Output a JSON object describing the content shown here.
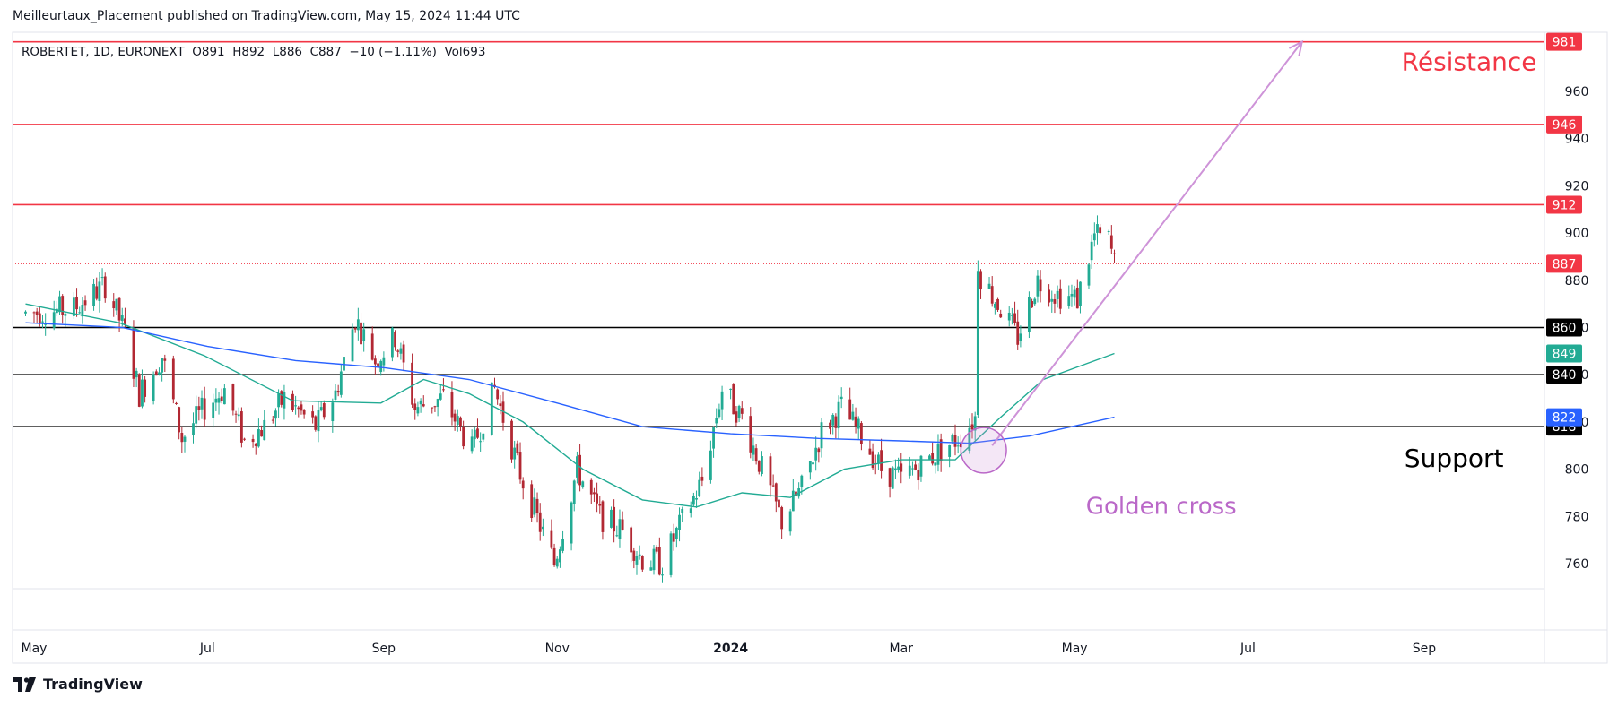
{
  "header": {
    "published_by": "Meilleurtaux_Placement published on TradingView.com, May 15, 2024 11:44 UTC"
  },
  "symbol_bar": {
    "text": "ROBERTET, 1D, EURONEXT  O891  H892  L886  C887  −10 (−1.11%)  Vol693"
  },
  "footer": {
    "brand": "TradingView",
    "logo_icon": "tradingview-logo-icon"
  },
  "colors": {
    "bull": "#22ab94",
    "bear": "#b22833",
    "resistance": "#f23645",
    "support": "#000000",
    "ma_fast": "#22ab94",
    "ma_slow": "#2962ff",
    "arrow": "#ce93d8",
    "annotation": "#ba68c8"
  },
  "chart_data": {
    "type": "candlestick",
    "symbol": "ROBERTET",
    "interval": "1D",
    "exchange": "EURONEXT",
    "last_price": 887,
    "ylim": [
      744,
      987
    ],
    "y_ticks": [
      760,
      780,
      800,
      820,
      840,
      860,
      880,
      900,
      920,
      940,
      960
    ],
    "x_ticks": [
      {
        "label": "May",
        "date": "2023-05-01"
      },
      {
        "label": "Jul",
        "date": "2023-07-01"
      },
      {
        "label": "Sep",
        "date": "2023-09-01"
      },
      {
        "label": "Nov",
        "date": "2023-11-01"
      },
      {
        "label": "2024",
        "date": "2024-01-01",
        "bold": true
      },
      {
        "label": "Mar",
        "date": "2024-03-01"
      },
      {
        "label": "May",
        "date": "2024-05-01"
      },
      {
        "label": "Jul",
        "date": "2024-07-01"
      },
      {
        "label": "Sep",
        "date": "2024-09-01"
      }
    ],
    "x_range": [
      "2023-04-28",
      "2024-10-30"
    ],
    "price_path": [
      [
        "2023-04-28",
        866
      ],
      [
        "2023-05-15",
        868
      ],
      [
        "2023-05-26",
        878
      ],
      [
        "2023-06-02",
        858
      ],
      [
        "2023-06-07",
        832
      ],
      [
        "2023-06-15",
        848
      ],
      [
        "2023-06-22",
        813
      ],
      [
        "2023-06-30",
        826
      ],
      [
        "2023-07-07",
        834
      ],
      [
        "2023-07-14",
        812
      ],
      [
        "2023-07-21",
        818
      ],
      [
        "2023-07-28",
        830
      ],
      [
        "2023-08-08",
        818
      ],
      [
        "2023-08-15",
        832
      ],
      [
        "2023-08-22",
        864
      ],
      [
        "2023-08-29",
        846
      ],
      [
        "2023-09-05",
        856
      ],
      [
        "2023-09-12",
        826
      ],
      [
        "2023-09-22",
        830
      ],
      [
        "2023-10-02",
        808
      ],
      [
        "2023-10-10",
        834
      ],
      [
        "2023-10-19",
        798
      ],
      [
        "2023-10-31",
        760
      ],
      [
        "2023-11-08",
        800
      ],
      [
        "2023-11-16",
        780
      ],
      [
        "2023-11-24",
        774
      ],
      [
        "2023-12-01",
        762
      ],
      [
        "2023-12-08",
        760
      ],
      [
        "2023-12-15",
        778
      ],
      [
        "2023-12-22",
        795
      ],
      [
        "2023-12-29",
        834
      ],
      [
        "2024-01-05",
        822
      ],
      [
        "2024-01-12",
        800
      ],
      [
        "2024-01-19",
        778
      ],
      [
        "2024-01-26",
        792
      ],
      [
        "2024-02-02",
        816
      ],
      [
        "2024-02-09",
        826
      ],
      [
        "2024-02-16",
        814
      ],
      [
        "2024-02-23",
        800
      ],
      [
        "2024-03-01",
        796
      ],
      [
        "2024-03-08",
        802
      ],
      [
        "2024-03-15",
        808
      ],
      [
        "2024-03-22",
        814
      ],
      [
        "2024-03-27",
        822
      ],
      [
        "2024-03-28",
        884
      ],
      [
        "2024-04-04",
        870
      ],
      [
        "2024-04-11",
        856
      ],
      [
        "2024-04-18",
        880
      ],
      [
        "2024-04-25",
        874
      ],
      [
        "2024-05-02",
        872
      ],
      [
        "2024-05-08",
        899
      ],
      [
        "2024-05-13",
        897
      ],
      [
        "2024-05-15",
        887
      ]
    ],
    "series": [
      {
        "name": "",
        "style": "line",
        "color_key": "ma_fast",
        "points": [
          [
            "2023-04-28",
            870
          ],
          [
            "2023-05-31",
            862
          ],
          [
            "2023-06-30",
            848
          ],
          [
            "2023-07-31",
            829
          ],
          [
            "2023-08-31",
            828
          ],
          [
            "2023-09-15",
            838
          ],
          [
            "2023-10-01",
            832
          ],
          [
            "2023-10-20",
            820
          ],
          [
            "2023-11-10",
            800
          ],
          [
            "2023-12-01",
            787
          ],
          [
            "2023-12-20",
            784
          ],
          [
            "2024-01-05",
            790
          ],
          [
            "2024-01-22",
            788
          ],
          [
            "2024-02-10",
            800
          ],
          [
            "2024-03-01",
            804
          ],
          [
            "2024-03-20",
            804
          ],
          [
            "2024-04-05",
            822
          ],
          [
            "2024-04-20",
            838
          ],
          [
            "2024-05-15",
            849
          ]
        ]
      },
      {
        "name": "",
        "style": "line",
        "color_key": "ma_slow",
        "points": [
          [
            "2023-04-28",
            862
          ],
          [
            "2023-06-01",
            860
          ],
          [
            "2023-07-01",
            852
          ],
          [
            "2023-08-01",
            846
          ],
          [
            "2023-09-01",
            843
          ],
          [
            "2023-10-01",
            838
          ],
          [
            "2023-11-01",
            828
          ],
          [
            "2023-12-01",
            818
          ],
          [
            "2024-01-01",
            815
          ],
          [
            "2024-02-01",
            813
          ],
          [
            "2024-03-01",
            812
          ],
          [
            "2024-03-25",
            811
          ],
          [
            "2024-04-15",
            814
          ],
          [
            "2024-05-15",
            822
          ]
        ]
      }
    ],
    "horizontal_lines": [
      {
        "value": 981,
        "color_key": "resistance",
        "label": "981"
      },
      {
        "value": 946,
        "color_key": "resistance",
        "label": "946"
      },
      {
        "value": 912,
        "color_key": "resistance",
        "label": "912"
      },
      {
        "value": 860,
        "color_key": "support",
        "label": "860"
      },
      {
        "value": 840,
        "color_key": "support",
        "label": "840"
      },
      {
        "value": 818,
        "color_key": "support",
        "label": "818"
      }
    ],
    "price_badges": [
      {
        "value": 887,
        "label": "887",
        "color": "#f23645",
        "text_color": "#ffffff",
        "dotted_line": true
      },
      {
        "value": 849,
        "label": "849",
        "color": "#22ab94",
        "text_color": "#ffffff"
      },
      {
        "value": 822,
        "label": "822",
        "color": "#2962ff",
        "text_color": "#ffffff"
      }
    ],
    "arrow": {
      "from": [
        "2024-04-02",
        810
      ],
      "to": [
        "2024-07-20",
        981
      ]
    },
    "circle": {
      "center": [
        "2024-03-30",
        808
      ],
      "radius_days": 8
    },
    "annotations": [
      {
        "text": "Résistance",
        "at": [
          "2024-08-24",
          969
        ],
        "color_key": "resistance",
        "font_size": 28
      },
      {
        "text": "Support",
        "at": [
          "2024-08-25",
          801
        ],
        "color": "#000000",
        "font_size": 28
      },
      {
        "text": "Golden cross",
        "at": [
          "2024-05-05",
          781
        ],
        "color_key": "annotation",
        "font_size": 26
      }
    ],
    "grid": false,
    "legend": "none"
  }
}
